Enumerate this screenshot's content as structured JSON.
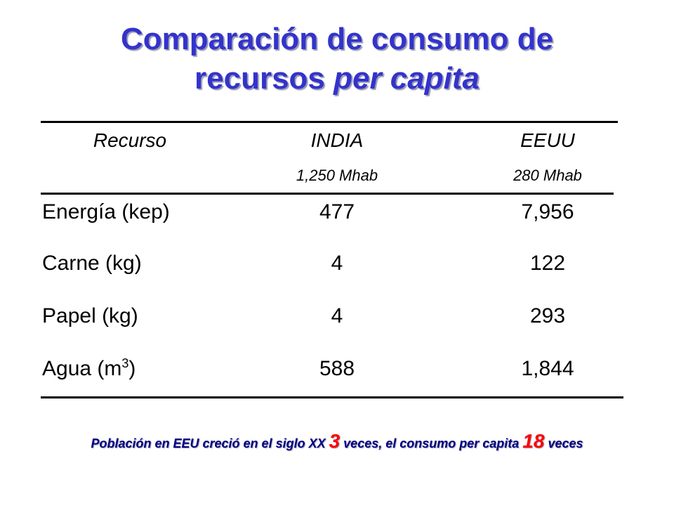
{
  "title": {
    "line1": "Comparación de consumo de",
    "line2_plain": "recursos ",
    "line2_italic": "per capita"
  },
  "table": {
    "headers": {
      "resource": "Recurso",
      "india": "INDIA",
      "eeuu": "EEUU"
    },
    "subheaders": {
      "india": "1,250 Mhab",
      "eeuu": "280 Mhab"
    },
    "rows": [
      {
        "resource": "Energía (kep)",
        "india": "477",
        "eeuu": "7,956"
      },
      {
        "resource": "Carne (kg)",
        "india": "4",
        "eeuu": "122"
      },
      {
        "resource": "Papel (kg)",
        "india": "4",
        "eeuu": "293"
      },
      {
        "resource_prefix": "Agua (m",
        "resource_sup": "3",
        "resource_suffix": ")",
        "india": "588",
        "eeuu": "1,844"
      }
    ]
  },
  "footnote": {
    "part1": "Población en EEU creció en el siglo XX ",
    "num1": "3",
    "part2": " veces, el consumo per capita ",
    "num2": "18",
    "part3": " veces"
  },
  "colors": {
    "title": "#3333cc",
    "footnote": "#000080",
    "highlight": "#ff0000"
  }
}
